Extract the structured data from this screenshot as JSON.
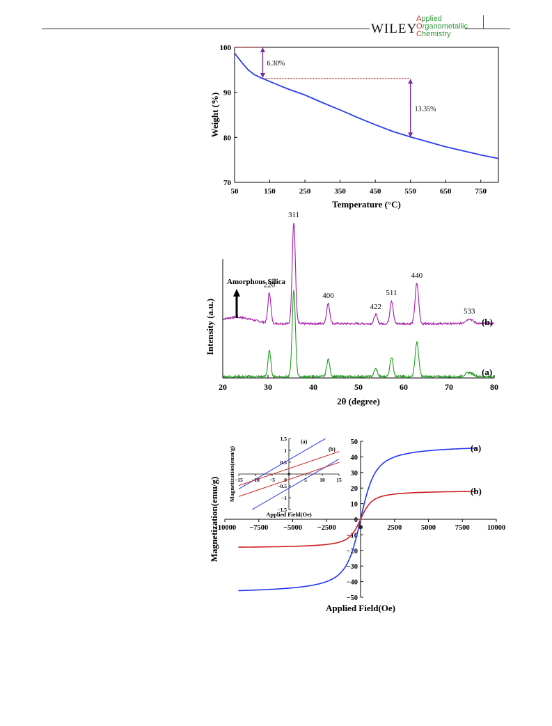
{
  "header": {
    "publisher": "WILEY",
    "journal_lines": [
      {
        "initial": "A",
        "rest": "pplied"
      },
      {
        "initial": "O",
        "rest": "rganometallic"
      },
      {
        "initial": "C",
        "rest": "hemistry"
      }
    ]
  },
  "chart_data": [
    {
      "type": "line",
      "xlabel": "Temperature (°C)",
      "ylabel": "Weight (%)",
      "xlim": [
        50,
        800
      ],
      "ylim": [
        70,
        100
      ],
      "xticks": [
        50,
        150,
        250,
        350,
        450,
        550,
        650,
        750
      ],
      "yticks": [
        70,
        80,
        90,
        100
      ],
      "series": [
        {
          "color": "#2a3cf2",
          "x": [
            50,
            60,
            75,
            90,
            105,
            120,
            135,
            150,
            175,
            200,
            250,
            300,
            350,
            400,
            450,
            500,
            550,
            600,
            650,
            700,
            750,
            800
          ],
          "y": [
            98.7,
            97.7,
            96.2,
            94.9,
            94.0,
            93.4,
            92.9,
            92.4,
            91.6,
            90.8,
            89.4,
            87.7,
            86.1,
            84.4,
            82.8,
            81.3,
            80.1,
            79.0,
            77.9,
            77.0,
            76.1,
            75.3
          ]
        }
      ],
      "annotations": [
        {
          "text": "6.30%",
          "x_arrow": 130,
          "y_top": 100,
          "y_bottom": 93.2
        },
        {
          "text": "13.35%",
          "x_arrow": 550,
          "y_top": 93.0,
          "y_bottom": 80.0
        }
      ],
      "guide_lines": [
        {
          "x1": 50,
          "x2": 130,
          "y": 100
        },
        {
          "x1": 130,
          "x2": 550,
          "y": 93.1
        }
      ],
      "colors": {
        "guide": "#c0392b",
        "arrow": "#7b2d9b"
      }
    },
    {
      "type": "line",
      "xlabel": "2θ (degree)",
      "ylabel": "Intensity (a.u.)",
      "xlim": [
        20,
        80
      ],
      "xticks": [
        20,
        30,
        40,
        50,
        60,
        70,
        80
      ],
      "baselines": {
        "b": 0.62,
        "a": 0.0
      },
      "series": [
        {
          "name": "(b)",
          "color": "#a21aa8",
          "baseline": 0.62,
          "hump": 0.07,
          "peak_scale": 1.0
        },
        {
          "name": "(a)",
          "color": "#1f9c1f",
          "baseline": 0.0,
          "hump": 0.0,
          "peak_scale": 0.85
        }
      ],
      "peaks": [
        {
          "label": "220",
          "x": 30.3,
          "height": 0.33,
          "width": 0.45
        },
        {
          "label": "311",
          "x": 35.7,
          "height": 1.1,
          "width": 0.5
        },
        {
          "label": "400",
          "x": 43.3,
          "height": 0.22,
          "width": 0.5
        },
        {
          "label": "422",
          "x": 53.8,
          "height": 0.1,
          "width": 0.5
        },
        {
          "label": "511",
          "x": 57.3,
          "height": 0.25,
          "width": 0.5
        },
        {
          "label": "440",
          "x": 62.9,
          "height": 0.44,
          "width": 0.55
        },
        {
          "label": "533",
          "x": 74.5,
          "height": 0.05,
          "width": 1.2
        }
      ],
      "annotation": {
        "text": "Amorphous  Silica"
      }
    },
    {
      "type": "line",
      "xlabel": "Applied Field(Oe)",
      "ylabel": "Magnetization(emu/g)",
      "xlim": [
        -10000,
        10000
      ],
      "ylim": [
        -50,
        50
      ],
      "xticks": [
        -10000,
        -7500,
        -5000,
        -2500,
        0,
        2500,
        5000,
        7500,
        10000
      ],
      "yticks": [
        -50,
        -40,
        -30,
        -20,
        -10,
        0,
        10,
        20,
        30,
        40,
        50
      ],
      "series": [
        {
          "name": "(a)",
          "color": "#2233ee",
          "Ms": 48,
          "a": 420
        },
        {
          "name": "(b)",
          "color": "#cc1f1f",
          "Ms": 18.6,
          "a": 330
        }
      ],
      "inset": {
        "xlabel": "Applied  Field(Oe)",
        "ylabel": "Magnetization(emu/g)",
        "xlim": [
          -15,
          15
        ],
        "ylim": [
          -1.5,
          1.5
        ],
        "xticks": [
          -15,
          -10,
          -5,
          0,
          5,
          10,
          15
        ],
        "yticks": [
          -1.5,
          -1,
          -0.5,
          0,
          0.5,
          1,
          1.5
        ],
        "series_labels": [
          "(a)",
          "(b)"
        ],
        "loops": [
          {
            "color": "#2233ee",
            "slope": 0.082,
            "offset": 0.6
          },
          {
            "color": "#cc1f1f",
            "slope": 0.048,
            "offset": 0.23
          }
        ]
      }
    }
  ]
}
